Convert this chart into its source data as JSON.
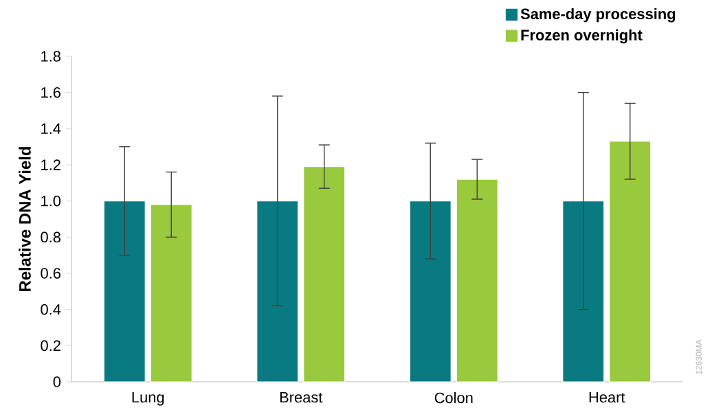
{
  "chart_data": {
    "type": "bar",
    "categories": [
      "Lung",
      "Breast",
      "Colon",
      "Heart"
    ],
    "ylabel": "Relative DNA Yield",
    "series": [
      {
        "name": "Same-day processing",
        "color": "#0a7a82",
        "values": [
          1.0,
          1.0,
          1.0,
          1.0
        ],
        "errors": [
          0.3,
          0.58,
          0.32,
          0.6
        ]
      },
      {
        "name": "Frozen overnight",
        "color": "#99c93c",
        "values": [
          0.98,
          1.19,
          1.12,
          1.33
        ],
        "errors": [
          0.18,
          0.12,
          0.11,
          0.21
        ]
      }
    ],
    "ylim": [
      0,
      1.8
    ],
    "yticks": [
      0,
      0.2,
      0.4,
      0.6,
      0.8,
      {
        "value": 1.0,
        "label": "1.0"
      },
      1.2,
      1.4,
      1.6,
      1.8
    ],
    "grid": false,
    "legend": "top right",
    "annotations": [
      "12630MA"
    ]
  }
}
